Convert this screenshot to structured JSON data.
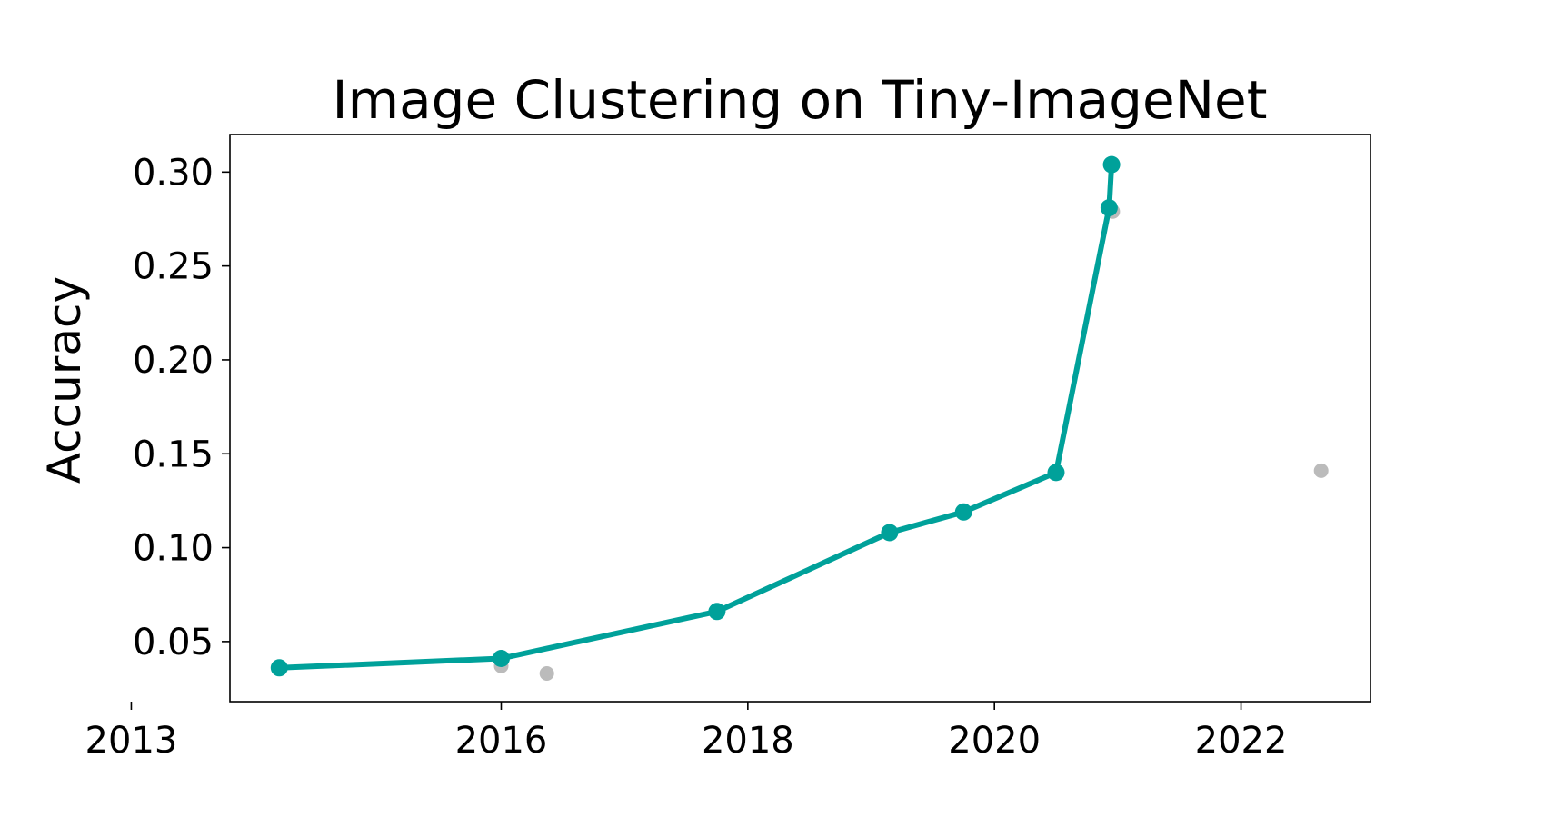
{
  "chart_data": {
    "type": "line",
    "title": "Image Clustering on Tiny-ImageNet",
    "xlabel": "",
    "ylabel": "Accuracy",
    "xticks": [
      "2013",
      "2016",
      "2018",
      "2020",
      "2022"
    ],
    "yticks": [
      "0.05",
      "0.10",
      "0.15",
      "0.20",
      "0.25",
      "0.30"
    ],
    "xlim": [
      2013.8,
      2023.05
    ],
    "ylim": [
      0.018,
      0.32
    ],
    "grid": false,
    "series": [
      {
        "name": "",
        "color": "#00a19a",
        "style": "line+markers",
        "points": [
          {
            "x": 2014.2,
            "y": 0.036
          },
          {
            "x": 2016.0,
            "y": 0.041
          },
          {
            "x": 2017.75,
            "y": 0.066
          },
          {
            "x": 2019.15,
            "y": 0.108
          },
          {
            "x": 2019.75,
            "y": 0.119
          },
          {
            "x": 2020.5,
            "y": 0.14
          },
          {
            "x": 2020.93,
            "y": 0.281
          },
          {
            "x": 2020.95,
            "y": 0.304
          }
        ]
      },
      {
        "name": "",
        "color": "#bbbbbb",
        "style": "markers",
        "points": [
          {
            "x": 2016.0,
            "y": 0.037
          },
          {
            "x": 2016.37,
            "y": 0.033
          },
          {
            "x": 2020.96,
            "y": 0.279
          },
          {
            "x": 2022.65,
            "y": 0.141
          }
        ]
      }
    ]
  }
}
